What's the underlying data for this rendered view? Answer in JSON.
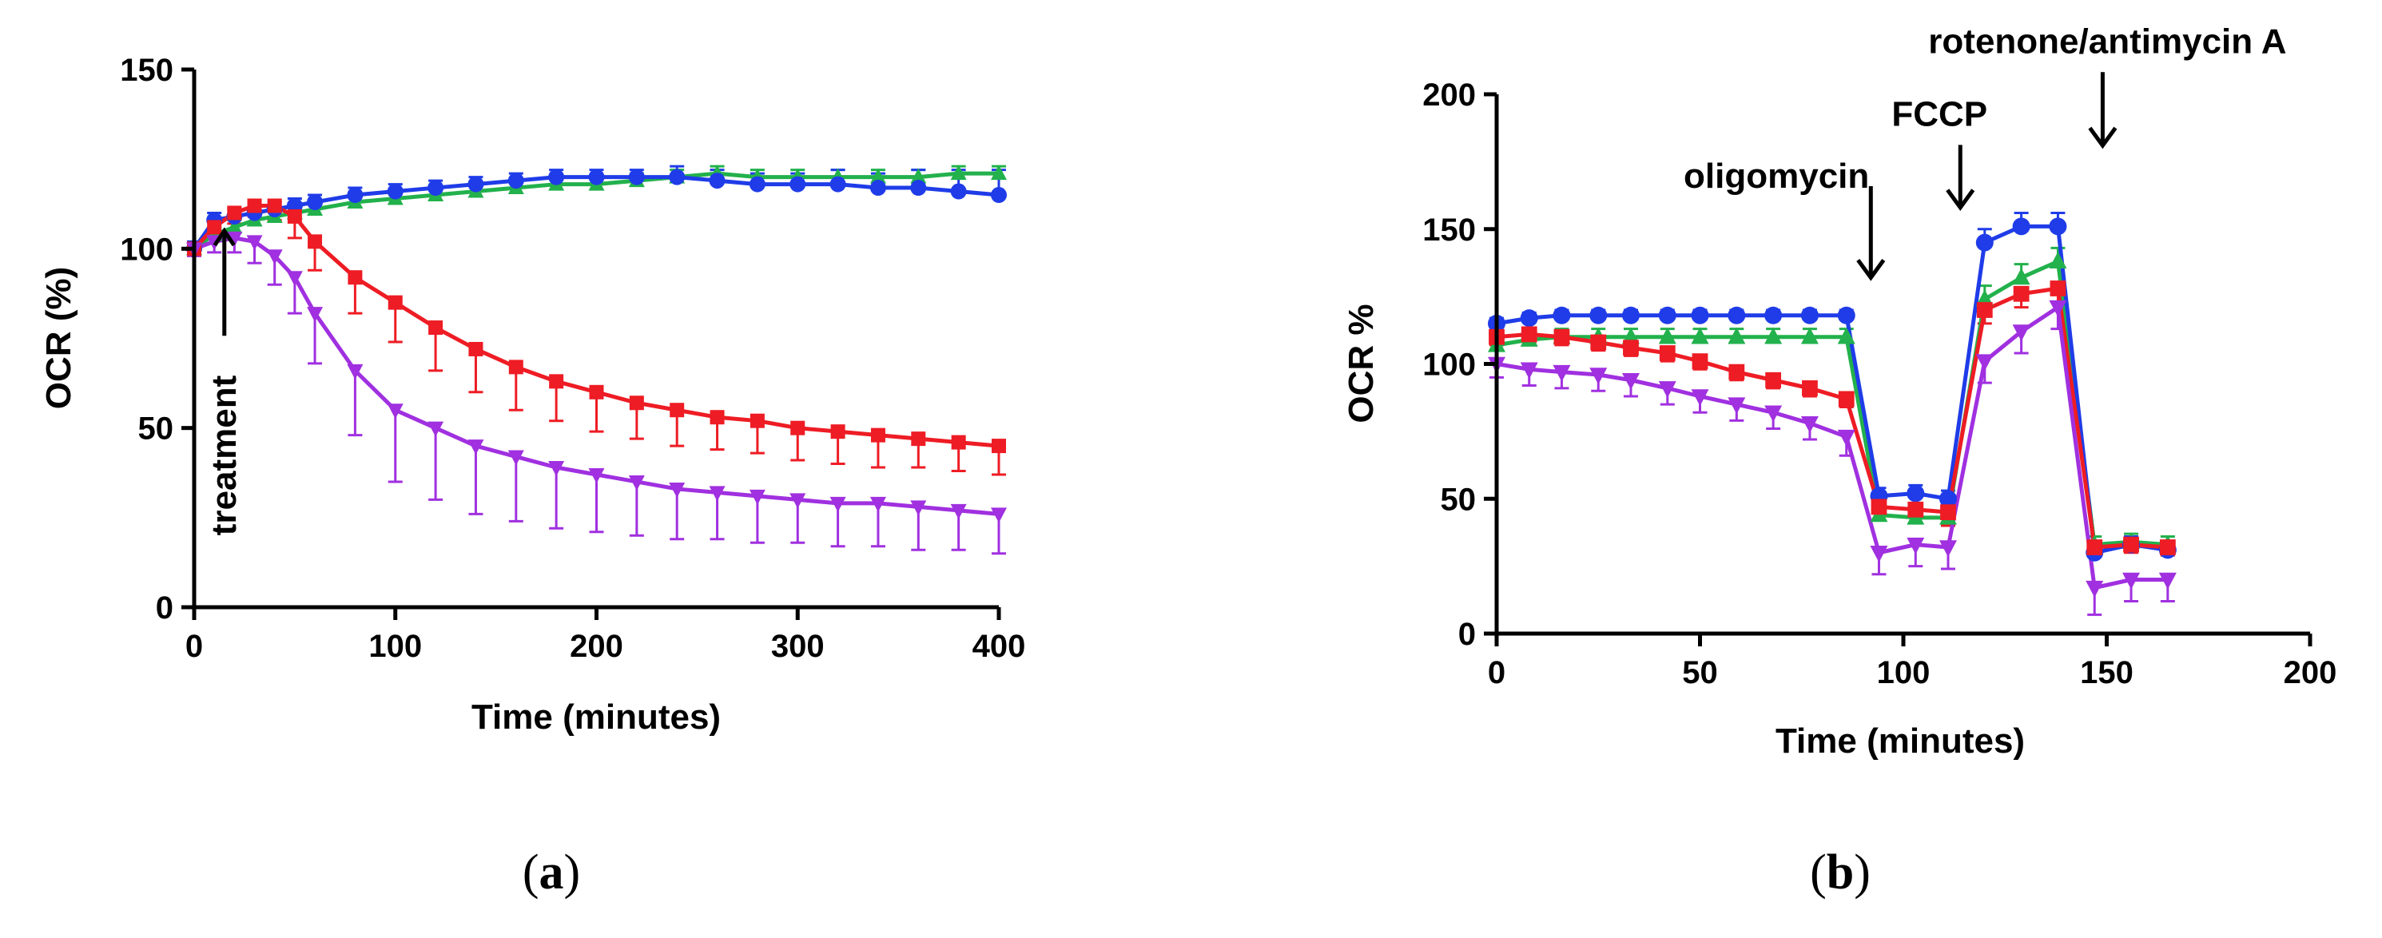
{
  "figure": {
    "panel_a_label": "a",
    "panel_b_label": "b"
  },
  "chart_data": [
    {
      "id": "a",
      "type": "line",
      "title": "",
      "xlabel": "Time (minutes)",
      "ylabel": "OCR (%)",
      "xlim": [
        0,
        400
      ],
      "ylim": [
        0,
        150
      ],
      "xticks": [
        0,
        100,
        200,
        300,
        400
      ],
      "yticks": [
        0,
        50,
        100,
        150
      ],
      "grid": false,
      "annotations": [
        {
          "text": "treatment",
          "x": 15,
          "y": 20,
          "arrow_to": [
            15,
            105
          ]
        }
      ],
      "series": [
        {
          "name": "green",
          "color": "#22b14c",
          "marker": "triangle-up",
          "x": [
            0,
            10,
            20,
            30,
            40,
            50,
            60,
            80,
            100,
            120,
            140,
            160,
            180,
            200,
            220,
            240,
            260,
            280,
            300,
            320,
            340,
            360,
            380,
            400
          ],
          "y": [
            100,
            104,
            106,
            108,
            109,
            110,
            111,
            113,
            114,
            115,
            116,
            117,
            118,
            118,
            119,
            120,
            121,
            120,
            120,
            120,
            120,
            120,
            121,
            121
          ],
          "err": [
            2,
            2,
            2,
            2,
            2,
            2,
            2,
            2,
            2,
            2,
            2,
            2,
            2,
            2,
            2,
            2,
            2,
            2,
            2,
            2,
            2,
            2,
            2,
            2
          ]
        },
        {
          "name": "blue",
          "color": "#1f3ce8",
          "marker": "circle",
          "x": [
            0,
            10,
            20,
            30,
            40,
            50,
            60,
            80,
            100,
            120,
            140,
            160,
            180,
            200,
            220,
            240,
            260,
            280,
            300,
            320,
            340,
            360,
            380,
            400
          ],
          "y": [
            100,
            108,
            109,
            110,
            111,
            112,
            113,
            115,
            116,
            117,
            118,
            119,
            120,
            120,
            120,
            120,
            119,
            118,
            118,
            118,
            117,
            117,
            116,
            115
          ],
          "err": [
            2,
            2,
            2,
            2,
            2,
            2,
            2,
            2,
            2,
            2,
            2,
            2,
            2,
            2,
            2,
            3,
            3,
            3,
            3,
            4,
            4,
            5,
            6,
            7
          ]
        },
        {
          "name": "red",
          "color": "#ee1c24",
          "marker": "square",
          "x": [
            0,
            10,
            20,
            30,
            40,
            50,
            60,
            80,
            100,
            120,
            140,
            160,
            180,
            200,
            220,
            240,
            260,
            280,
            300,
            320,
            340,
            360,
            380,
            400
          ],
          "y": [
            100,
            106,
            110,
            112,
            112,
            109,
            102,
            92,
            85,
            78,
            72,
            67,
            63,
            60,
            57,
            55,
            53,
            52,
            50,
            49,
            48,
            47,
            46,
            45
          ],
          "err": [
            2,
            2,
            3,
            3,
            4,
            6,
            8,
            10,
            11,
            12,
            12,
            12,
            11,
            11,
            10,
            10,
            9,
            9,
            9,
            9,
            9,
            8,
            8,
            8
          ]
        },
        {
          "name": "purple",
          "color": "#a030e0",
          "marker": "triangle-down",
          "x": [
            0,
            10,
            20,
            30,
            40,
            50,
            60,
            80,
            100,
            120,
            140,
            160,
            180,
            200,
            220,
            240,
            260,
            280,
            300,
            320,
            340,
            360,
            380,
            400
          ],
          "y": [
            100,
            102,
            103,
            102,
            98,
            92,
            82,
            66,
            55,
            50,
            45,
            42,
            39,
            37,
            35,
            33,
            32,
            31,
            30,
            29,
            29,
            28,
            27,
            26
          ],
          "err": [
            2,
            3,
            4,
            6,
            8,
            10,
            14,
            18,
            20,
            20,
            19,
            18,
            17,
            16,
            15,
            14,
            13,
            13,
            12,
            12,
            12,
            12,
            11,
            11
          ]
        }
      ]
    },
    {
      "id": "b",
      "type": "line",
      "title": "",
      "xlabel": "Time (minutes)",
      "ylabel": "OCR %",
      "xlim": [
        0,
        200
      ],
      "ylim": [
        0,
        200
      ],
      "xticks": [
        0,
        50,
        100,
        150,
        200
      ],
      "yticks": [
        0,
        50,
        100,
        150,
        200
      ],
      "grid": false,
      "annotations": [
        {
          "text": "oligomycin",
          "x": 92,
          "y": 160,
          "arrow_to": [
            92,
            132
          ]
        },
        {
          "text": "FCCP",
          "x": 114,
          "y": 183,
          "arrow_to": [
            114,
            158
          ]
        },
        {
          "text": "rotenone/antimycin A",
          "x": 149,
          "y": 210,
          "arrow_to": [
            149,
            181
          ]
        }
      ],
      "series": [
        {
          "name": "green",
          "color": "#22b14c",
          "marker": "triangle-up",
          "x": [
            0,
            8,
            16,
            25,
            33,
            42,
            50,
            59,
            68,
            77,
            86,
            94,
            103,
            111,
            120,
            129,
            138,
            147,
            156,
            165
          ],
          "y": [
            107,
            109,
            110,
            110,
            110,
            110,
            110,
            110,
            110,
            110,
            110,
            44,
            43,
            43,
            124,
            132,
            138,
            33,
            34,
            33
          ],
          "err": [
            3,
            3,
            3,
            3,
            3,
            3,
            3,
            3,
            3,
            3,
            3,
            5,
            5,
            5,
            5,
            5,
            5,
            3,
            3,
            3
          ]
        },
        {
          "name": "blue",
          "color": "#1f3ce8",
          "marker": "circle",
          "x": [
            0,
            8,
            16,
            25,
            33,
            42,
            50,
            59,
            68,
            77,
            86,
            94,
            103,
            111,
            120,
            129,
            138,
            147,
            156,
            165
          ],
          "y": [
            115,
            117,
            118,
            118,
            118,
            118,
            118,
            118,
            118,
            118,
            118,
            51,
            52,
            50,
            145,
            151,
            151,
            30,
            33,
            31
          ],
          "err": [
            2,
            2,
            2,
            2,
            2,
            2,
            2,
            2,
            2,
            2,
            2,
            3,
            3,
            3,
            5,
            5,
            5,
            3,
            3,
            3
          ]
        },
        {
          "name": "red",
          "color": "#ee1c24",
          "marker": "square",
          "x": [
            0,
            8,
            16,
            25,
            33,
            42,
            50,
            59,
            68,
            77,
            86,
            94,
            103,
            111,
            120,
            129,
            138,
            147,
            156,
            165
          ],
          "y": [
            110,
            111,
            110,
            108,
            106,
            104,
            101,
            97,
            94,
            91,
            87,
            47,
            46,
            45,
            120,
            126,
            128,
            32,
            33,
            32
          ],
          "err": [
            3,
            3,
            3,
            3,
            3,
            3,
            3,
            3,
            3,
            3,
            3,
            5,
            5,
            5,
            5,
            5,
            5,
            3,
            3,
            3
          ]
        },
        {
          "name": "purple",
          "color": "#a030e0",
          "marker": "triangle-down",
          "x": [
            0,
            8,
            16,
            25,
            33,
            42,
            50,
            59,
            68,
            77,
            86,
            94,
            103,
            111,
            120,
            129,
            138,
            147,
            156,
            165
          ],
          "y": [
            100,
            98,
            97,
            96,
            94,
            91,
            88,
            85,
            82,
            78,
            73,
            30,
            33,
            32,
            101,
            112,
            121,
            17,
            20,
            20
          ],
          "err": [
            5,
            6,
            6,
            6,
            6,
            6,
            6,
            6,
            6,
            6,
            7,
            8,
            8,
            8,
            8,
            8,
            8,
            10,
            8,
            8
          ]
        }
      ]
    }
  ]
}
